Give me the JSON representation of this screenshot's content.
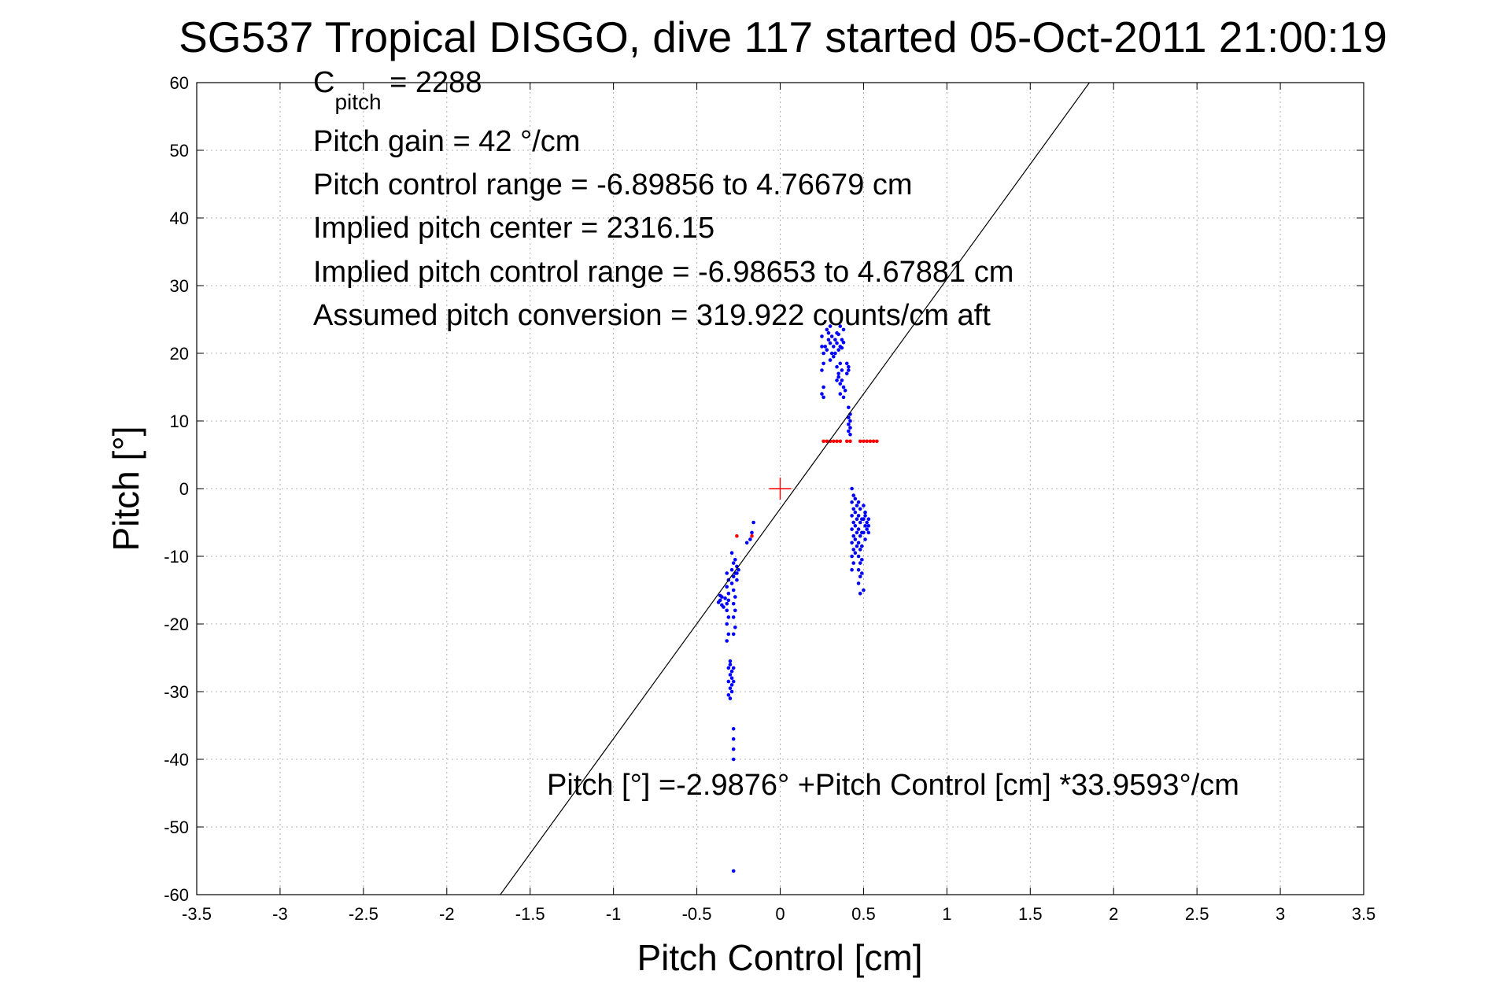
{
  "chart_data": {
    "type": "scatter",
    "title": "SG537 Tropical DISGO, dive 117 started 05-Oct-2011 21:00:19",
    "xlabel": "Pitch Control [cm]",
    "ylabel": "Pitch [°]",
    "xlim": [
      -3.5,
      3.5
    ],
    "ylim": [
      -60,
      60
    ],
    "x_ticks": [
      "-3.5",
      "-3",
      "-2.5",
      "-2",
      "-1.5",
      "-1",
      "-0.5",
      "0",
      "0.5",
      "1",
      "1.5",
      "2",
      "2.5",
      "3",
      "3.5"
    ],
    "y_ticks": [
      "60",
      "50",
      "40",
      "30",
      "20",
      "10",
      "0",
      "-10",
      "-20",
      "-30",
      "-40",
      "-50",
      "-60"
    ],
    "grid": true,
    "annotations": {
      "c_pitch_main": "C",
      "c_pitch_sub": "pitch",
      "c_pitch_value": " = 2288",
      "pitch_gain": "Pitch gain = 42 °/cm",
      "control_range": "Pitch control range = -6.89856 to 4.76679 cm",
      "implied_center": "Implied pitch center = 2316.15",
      "implied_range": "Implied pitch control range = -6.98653 to 4.67881 cm",
      "conversion": "Assumed pitch conversion = 319.922 counts/cm aft",
      "fit_equation": "Pitch [°] =-2.9876° +Pitch Control [cm] *33.9593°/cm"
    },
    "fit_line": {
      "intercept": -2.9876,
      "slope": 33.9593,
      "color": "#000000"
    },
    "center_marker": {
      "x": 0,
      "y": 0,
      "color": "#ff0000"
    },
    "series": [
      {
        "color": "#0000ff",
        "points": [
          [
            -0.36,
            -16.5
          ],
          [
            -0.35,
            -17.2
          ],
          [
            -0.37,
            -16.8
          ],
          [
            -0.35,
            -16.0
          ],
          [
            -0.34,
            -17.5
          ],
          [
            -0.36,
            -15.8
          ],
          [
            -0.33,
            -16.2
          ],
          [
            -0.32,
            -17.0
          ],
          [
            -0.31,
            -16.5
          ],
          [
            -0.32,
            -18.0
          ],
          [
            -0.31,
            -15.5
          ],
          [
            -0.32,
            -14.5
          ],
          [
            -0.31,
            -13.5
          ],
          [
            -0.32,
            -12.5
          ],
          [
            -0.31,
            -19.0
          ],
          [
            -0.32,
            -20.0
          ],
          [
            -0.31,
            -21.5
          ],
          [
            -0.32,
            -22.5
          ],
          [
            -0.3,
            -25.5
          ],
          [
            -0.31,
            -26.5
          ],
          [
            -0.3,
            -27.5
          ],
          [
            -0.31,
            -28.5
          ],
          [
            -0.3,
            -29.5
          ],
          [
            -0.31,
            -30.5
          ],
          [
            -0.3,
            -26.0
          ],
          [
            -0.29,
            -27.0
          ],
          [
            -0.29,
            -28.0
          ],
          [
            -0.29,
            -29.0
          ],
          [
            -0.28,
            -26.5
          ],
          [
            -0.28,
            -28.5
          ],
          [
            -0.29,
            -30.0
          ],
          [
            -0.3,
            -31.0
          ],
          [
            -0.29,
            -12.0
          ],
          [
            -0.28,
            -13.0
          ],
          [
            -0.27,
            -12.5
          ],
          [
            -0.28,
            -11.0
          ],
          [
            -0.27,
            -10.5
          ],
          [
            -0.29,
            -14.0
          ],
          [
            -0.28,
            -15.0
          ],
          [
            -0.27,
            -16.0
          ],
          [
            -0.28,
            -17.0
          ],
          [
            -0.27,
            -18.0
          ],
          [
            -0.28,
            -19.0
          ],
          [
            -0.27,
            -20.5
          ],
          [
            -0.28,
            -21.5
          ],
          [
            -0.29,
            -9.5
          ],
          [
            -0.26,
            -12.5
          ],
          [
            -0.26,
            -11.5
          ],
          [
            -0.25,
            -12.0
          ],
          [
            -0.26,
            -13.5
          ],
          [
            -0.28,
            -35.5
          ],
          [
            -0.28,
            -37.0
          ],
          [
            -0.28,
            -38.5
          ],
          [
            -0.28,
            -40.0
          ],
          [
            -0.28,
            -56.5
          ],
          [
            -0.2,
            -8.0
          ],
          [
            -0.17,
            -6.5
          ],
          [
            -0.16,
            -5.0
          ],
          [
            -0.18,
            -7.5
          ],
          [
            0.27,
            21.0
          ],
          [
            0.28,
            20.5
          ],
          [
            0.29,
            22.0
          ],
          [
            0.3,
            21.5
          ],
          [
            0.29,
            23.0
          ],
          [
            0.3,
            24.0
          ],
          [
            0.31,
            22.5
          ],
          [
            0.31,
            20.0
          ],
          [
            0.32,
            21.0
          ],
          [
            0.33,
            22.0
          ],
          [
            0.34,
            21.5
          ],
          [
            0.35,
            20.5
          ],
          [
            0.36,
            21.0
          ],
          [
            0.37,
            22.0
          ],
          [
            0.38,
            23.5
          ],
          [
            0.36,
            24.0
          ],
          [
            0.34,
            23.0
          ],
          [
            0.33,
            20.0
          ],
          [
            0.32,
            19.5
          ],
          [
            0.35,
            22.8
          ],
          [
            0.37,
            20.8
          ],
          [
            0.38,
            21.6
          ],
          [
            0.28,
            23.5
          ],
          [
            0.3,
            19.0
          ],
          [
            0.26,
            20.0
          ],
          [
            0.25,
            21.0
          ],
          [
            0.25,
            22.5
          ],
          [
            0.26,
            18.5
          ],
          [
            0.25,
            17.5
          ],
          [
            0.26,
            15.0
          ],
          [
            0.25,
            14.0
          ],
          [
            0.26,
            13.5
          ],
          [
            0.34,
            18.0
          ],
          [
            0.35,
            17.0
          ],
          [
            0.34,
            16.0
          ],
          [
            0.36,
            15.5
          ],
          [
            0.37,
            17.5
          ],
          [
            0.36,
            18.5
          ],
          [
            0.35,
            16.5
          ],
          [
            0.37,
            16.0
          ],
          [
            0.38,
            15.0
          ],
          [
            0.39,
            14.5
          ],
          [
            0.38,
            13.5
          ],
          [
            0.36,
            14.0
          ],
          [
            0.4,
            18.5
          ],
          [
            0.41,
            18.0
          ],
          [
            0.4,
            17.0
          ],
          [
            0.41,
            17.5
          ],
          [
            0.41,
            12.0
          ],
          [
            0.42,
            11.0
          ],
          [
            0.41,
            10.5
          ],
          [
            0.42,
            10.0
          ],
          [
            0.41,
            9.5
          ],
          [
            0.42,
            9.0
          ],
          [
            0.41,
            8.5
          ],
          [
            0.42,
            8.0
          ],
          [
            0.43,
            0.0
          ],
          [
            0.44,
            -1.0
          ],
          [
            0.43,
            -2.0
          ],
          [
            0.44,
            -3.0
          ],
          [
            0.43,
            -4.0
          ],
          [
            0.44,
            -5.0
          ],
          [
            0.43,
            -6.0
          ],
          [
            0.44,
            -7.0
          ],
          [
            0.43,
            -8.0
          ],
          [
            0.44,
            -9.0
          ],
          [
            0.43,
            -10.0
          ],
          [
            0.44,
            -11.0
          ],
          [
            0.43,
            -12.0
          ],
          [
            0.45,
            -1.5
          ],
          [
            0.45,
            -3.5
          ],
          [
            0.45,
            -5.5
          ],
          [
            0.45,
            -7.5
          ],
          [
            0.45,
            -9.5
          ],
          [
            0.46,
            -2.5
          ],
          [
            0.46,
            -4.5
          ],
          [
            0.46,
            -6.5
          ],
          [
            0.46,
            -8.5
          ],
          [
            0.47,
            -2.0
          ],
          [
            0.48,
            -3.0
          ],
          [
            0.47,
            -4.0
          ],
          [
            0.48,
            -5.0
          ],
          [
            0.47,
            -6.0
          ],
          [
            0.48,
            -7.0
          ],
          [
            0.47,
            -8.0
          ],
          [
            0.48,
            -9.0
          ],
          [
            0.47,
            -10.0
          ],
          [
            0.48,
            -11.0
          ],
          [
            0.47,
            -12.0
          ],
          [
            0.48,
            -13.0
          ],
          [
            0.47,
            -14.0
          ],
          [
            0.48,
            -15.5
          ],
          [
            0.49,
            -4.5
          ],
          [
            0.49,
            -6.5
          ],
          [
            0.49,
            -8.5
          ],
          [
            0.49,
            -10.5
          ],
          [
            0.49,
            -12.5
          ],
          [
            0.5,
            -2.5
          ],
          [
            0.51,
            -3.5
          ],
          [
            0.5,
            -4.5
          ],
          [
            0.51,
            -5.5
          ],
          [
            0.5,
            -6.5
          ],
          [
            0.51,
            -7.5
          ],
          [
            0.52,
            -5.0
          ],
          [
            0.52,
            -6.0
          ],
          [
            0.53,
            -4.5
          ],
          [
            0.53,
            -5.5
          ],
          [
            0.53,
            -6.5
          ],
          [
            0.51,
            -4.0
          ],
          [
            0.5,
            -15.0
          ]
        ]
      },
      {
        "color": "#ff0000",
        "points": [
          [
            0.26,
            7.0
          ],
          [
            0.28,
            7.0
          ],
          [
            0.3,
            7.0
          ],
          [
            0.32,
            7.0
          ],
          [
            0.34,
            7.0
          ],
          [
            0.36,
            7.0
          ],
          [
            0.4,
            7.0
          ],
          [
            0.42,
            7.0
          ],
          [
            0.48,
            7.0
          ],
          [
            0.5,
            7.0
          ],
          [
            0.52,
            7.0
          ],
          [
            0.54,
            7.0
          ],
          [
            0.56,
            7.0
          ],
          [
            0.58,
            7.0
          ],
          [
            -0.26,
            -7.0
          ],
          [
            -0.17,
            -7.0
          ]
        ]
      }
    ]
  }
}
